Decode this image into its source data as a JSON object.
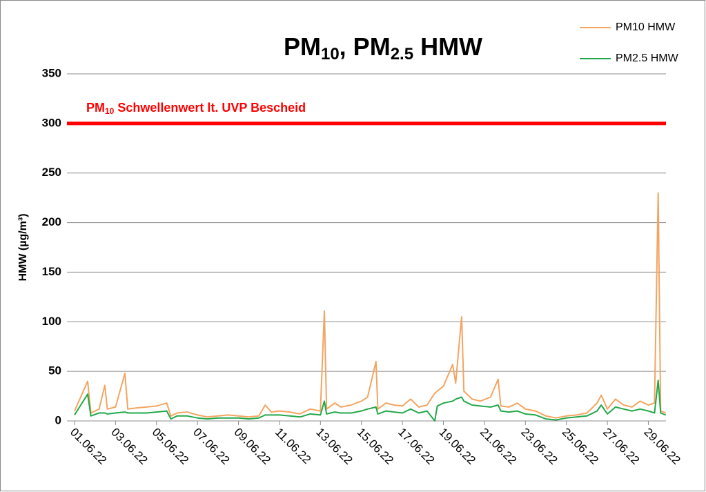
{
  "chart_data": {
    "type": "line",
    "title_parts": [
      "PM",
      "10",
      ", PM",
      "2.5",
      " HMW"
    ],
    "y_label": "HMW (µg/m³)",
    "x": [
      1.0,
      1.64,
      1.8,
      2.2,
      2.48,
      2.6,
      3.0,
      3.46,
      3.6,
      4.0,
      4.5,
      5.0,
      5.5,
      5.7,
      6.0,
      6.5,
      7.0,
      7.5,
      8.0,
      8.5,
      9.0,
      9.5,
      10.0,
      10.3,
      10.6,
      11.0,
      11.5,
      12.0,
      12.5,
      13.0,
      13.19,
      13.3,
      13.7,
      14.0,
      14.5,
      15.0,
      15.3,
      15.71,
      15.8,
      16.2,
      16.6,
      17.0,
      17.4,
      17.8,
      18.2,
      18.58,
      18.7,
      19.0,
      19.45,
      19.6,
      19.89,
      20.0,
      20.4,
      20.8,
      21.3,
      21.67,
      21.8,
      22.2,
      22.6,
      23.0,
      23.5,
      24.0,
      24.5,
      25.0,
      25.5,
      26.0,
      26.5,
      26.7,
      27.0,
      27.4,
      27.8,
      28.2,
      28.6,
      29.0,
      29.3,
      29.48,
      29.6,
      29.85
    ],
    "series": [
      {
        "name": "PM10 HMW",
        "color": "#f4a460",
        "values": [
          10,
          40,
          8,
          12,
          36,
          12,
          14,
          48,
          12,
          13,
          14,
          15,
          18,
          5,
          8,
          9,
          6,
          4,
          5,
          6,
          5,
          4,
          5,
          16,
          9,
          10,
          9,
          7,
          12,
          10,
          111,
          12,
          18,
          14,
          16,
          20,
          24,
          60,
          12,
          18,
          16,
          15,
          22,
          14,
          16,
          28,
          30,
          35,
          57,
          38,
          105,
          30,
          22,
          20,
          24,
          42,
          15,
          14,
          18,
          12,
          10,
          5,
          3,
          5,
          6,
          8,
          18,
          26,
          12,
          22,
          16,
          14,
          20,
          16,
          18,
          230,
          10,
          8
        ]
      },
      {
        "name": "PM2.5 HMW",
        "color": "#22a84a",
        "values": [
          6,
          27,
          5,
          8,
          8,
          7,
          8,
          9,
          8,
          8,
          8,
          9,
          10,
          2,
          5,
          5,
          3,
          2,
          3,
          3,
          3,
          2,
          3,
          6,
          6,
          6,
          5,
          4,
          7,
          6,
          20,
          7,
          9,
          8,
          8,
          10,
          12,
          14,
          7,
          10,
          9,
          8,
          12,
          8,
          10,
          0,
          15,
          18,
          20,
          22,
          24,
          20,
          16,
          15,
          14,
          16,
          10,
          9,
          10,
          7,
          6,
          2,
          1,
          3,
          4,
          5,
          10,
          16,
          7,
          14,
          12,
          10,
          12,
          10,
          8,
          41,
          8,
          6
        ]
      }
    ],
    "threshold": {
      "value": 300,
      "color": "#ff0000",
      "label_parts": [
        "PM",
        "10",
        " Schwellenwert lt. UVP Bescheid"
      ]
    },
    "xlim": [
      0.63,
      29.86
    ],
    "xticks": [
      {
        "value": 1,
        "label": "01.06.22"
      },
      {
        "value": 3,
        "label": "03.06.22"
      },
      {
        "value": 5,
        "label": "05.06.22"
      },
      {
        "value": 7,
        "label": "07.06.22"
      },
      {
        "value": 9,
        "label": "09.06.22"
      },
      {
        "value": 11,
        "label": "11.06.22"
      },
      {
        "value": 13,
        "label": "13.06.22"
      },
      {
        "value": 15,
        "label": "15.06.22"
      },
      {
        "value": 17,
        "label": "17.06.22"
      },
      {
        "value": 19,
        "label": "19.06.22"
      },
      {
        "value": 21,
        "label": "21.06.22"
      },
      {
        "value": 23,
        "label": "23.06.22"
      },
      {
        "value": 25,
        "label": "25.06.22"
      },
      {
        "value": 27,
        "label": "27.06.22"
      },
      {
        "value": 29,
        "label": "29.06.22"
      }
    ],
    "ylim": [
      0,
      350
    ],
    "yticks": [
      0,
      50,
      100,
      150,
      200,
      250,
      300,
      350
    ],
    "grid": true,
    "legend": "top-right"
  }
}
